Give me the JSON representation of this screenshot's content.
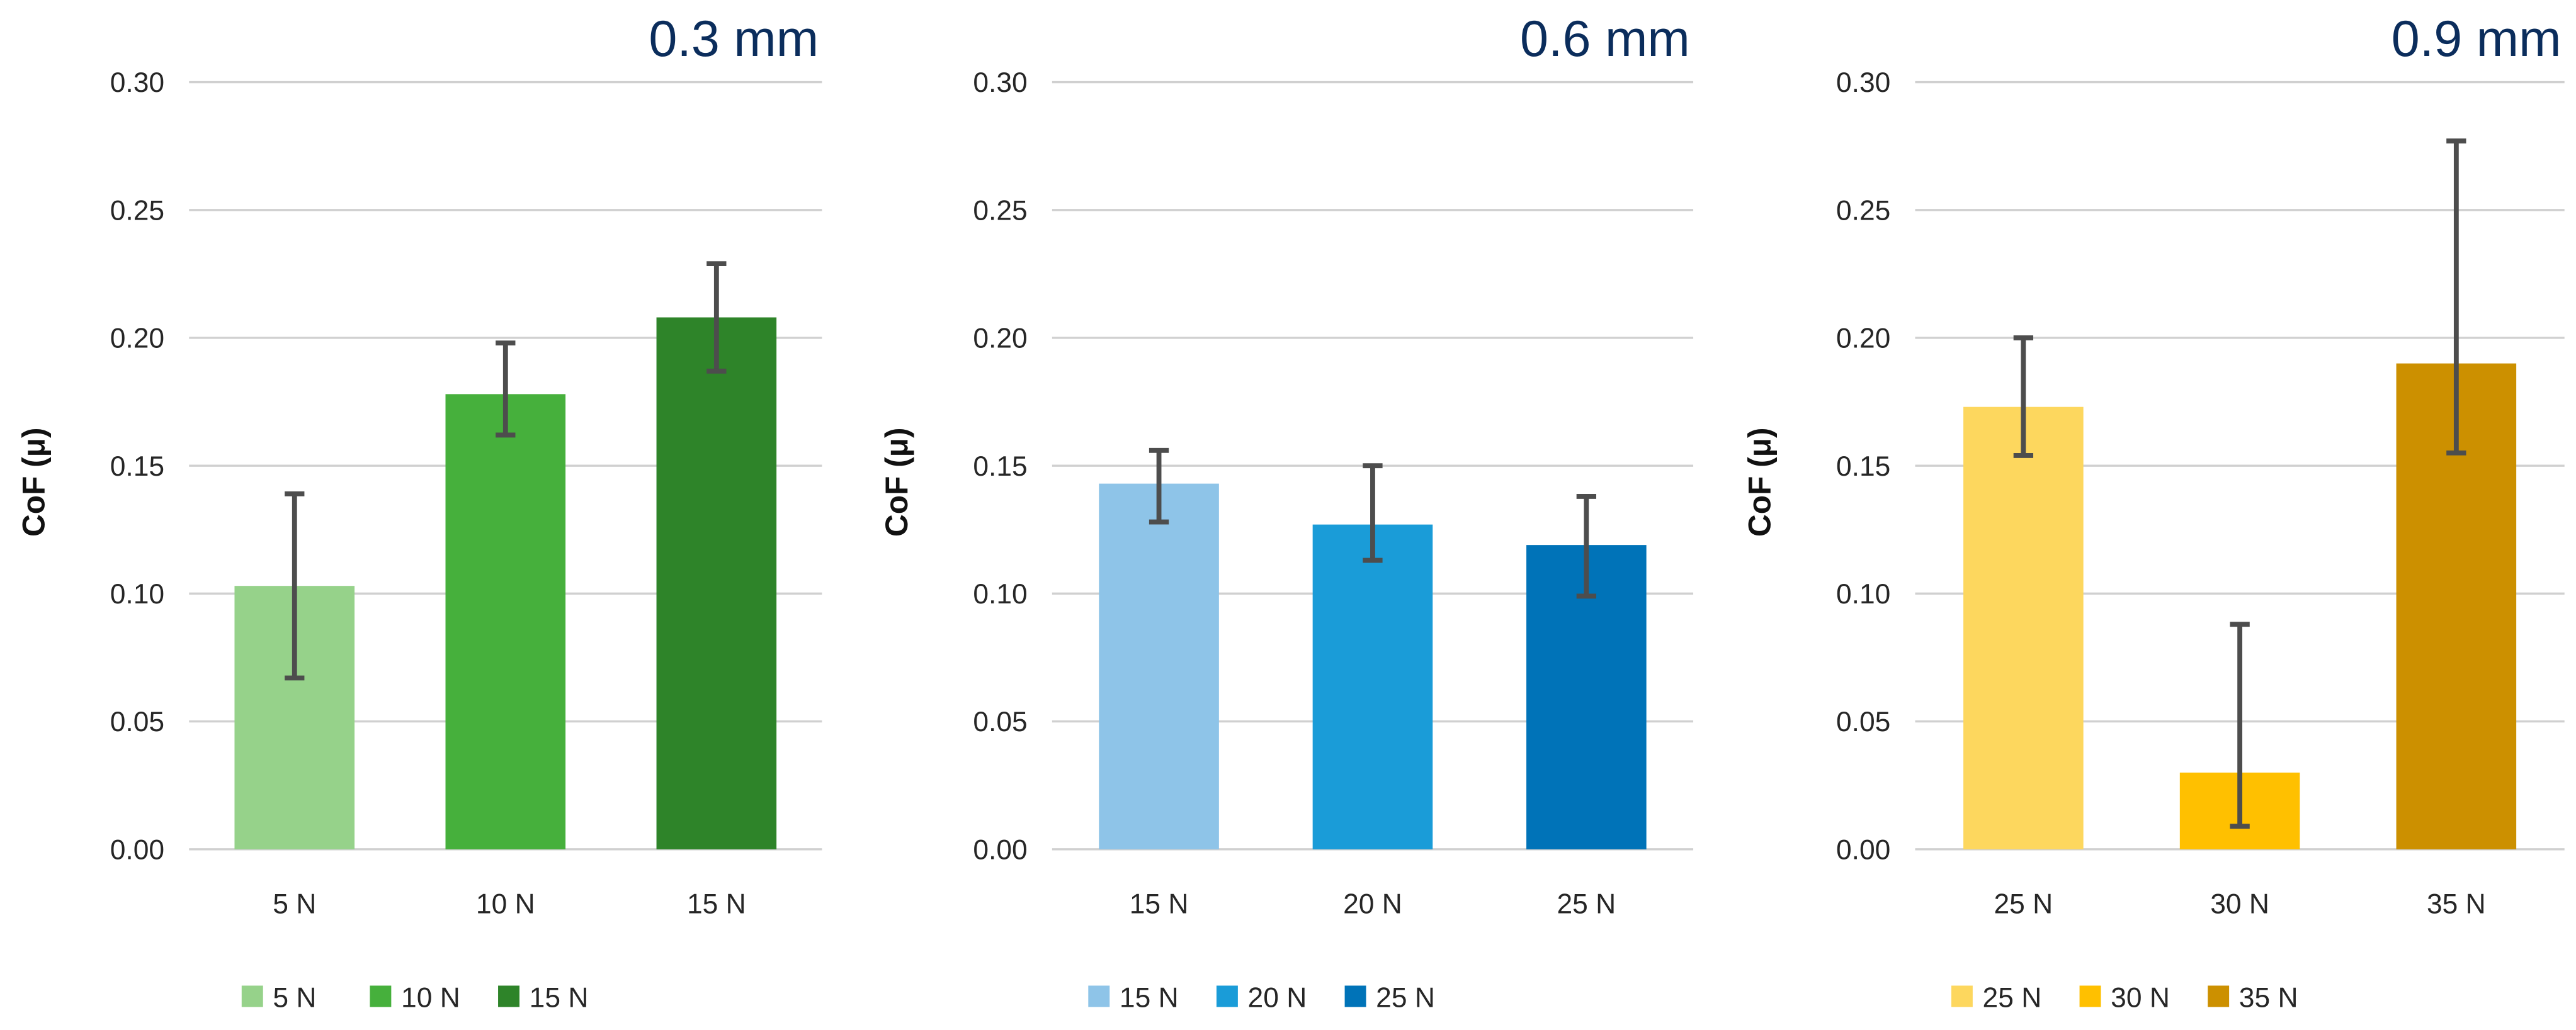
{
  "chart_data": [
    {
      "type": "bar",
      "title": "0.3 mm",
      "ylabel": "CoF (μ)",
      "xlabel": "",
      "ylim": [
        0,
        0.3
      ],
      "yticks": [
        "0.00",
        "0.05",
        "0.10",
        "0.15",
        "0.20",
        "0.25",
        "0.30"
      ],
      "grid": true,
      "legend_position": "bottom",
      "categories": [
        "5 N",
        "10 N",
        "15 N"
      ],
      "values": [
        0.103,
        0.178,
        0.208
      ],
      "error_low": [
        0.067,
        0.162,
        0.187
      ],
      "error_high": [
        0.139,
        0.198,
        0.229
      ],
      "colors": [
        "#96D28A",
        "#46B03C",
        "#2E8429"
      ]
    },
    {
      "type": "bar",
      "title": "0.6 mm",
      "ylabel": "CoF (μ)",
      "xlabel": "",
      "ylim": [
        0,
        0.3
      ],
      "yticks": [
        "0.00",
        "0.05",
        "0.10",
        "0.15",
        "0.20",
        "0.25",
        "0.30"
      ],
      "grid": true,
      "legend_position": "bottom",
      "categories": [
        "15 N",
        "20 N",
        "25 N"
      ],
      "values": [
        0.143,
        0.127,
        0.119
      ],
      "error_low": [
        0.128,
        0.113,
        0.099
      ],
      "error_high": [
        0.156,
        0.15,
        0.138
      ],
      "colors": [
        "#8EC4E8",
        "#1A9CD8",
        "#0073B8"
      ]
    },
    {
      "type": "bar",
      "title": "0.9 mm",
      "ylabel": "CoF (μ)",
      "xlabel": "",
      "ylim": [
        0,
        0.3
      ],
      "yticks": [
        "0.00",
        "0.05",
        "0.10",
        "0.15",
        "0.20",
        "0.25",
        "0.30"
      ],
      "grid": true,
      "legend_position": "bottom",
      "categories": [
        "25 N",
        "30 N",
        "35 N"
      ],
      "values": [
        0.173,
        0.03,
        0.19
      ],
      "error_low": [
        0.154,
        0.009,
        0.155
      ],
      "error_high": [
        0.2,
        0.088,
        0.277
      ],
      "colors": [
        "#FDD75E",
        "#FFC000",
        "#CC9000"
      ]
    }
  ]
}
